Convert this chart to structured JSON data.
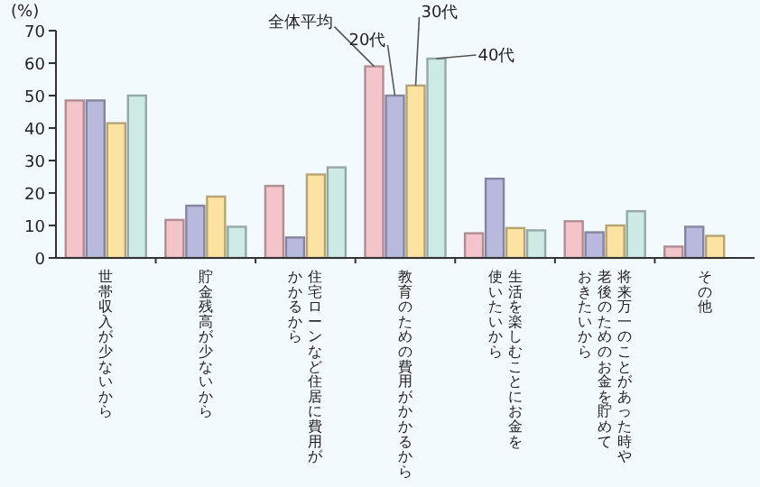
{
  "chart_data": {
    "type": "bar",
    "ylabel": "(%)",
    "ylim": [
      0,
      70
    ],
    "yticks": [
      0,
      10,
      20,
      30,
      40,
      50,
      60,
      70
    ],
    "grid": false,
    "categories": [
      "世帯収入が少ないから",
      "貯金残高が少ないから",
      "住宅ローンなど住居に費用が",
      "教育のための費用がかかるから",
      "生活を楽しむことにお金を",
      "将来万一のことがあった時や",
      "その他"
    ],
    "annotations": [
      "かかるから",
      "使いたいから",
      "老後のためのお金を貯めて",
      "おきたいから"
    ],
    "series": [
      {
        "name": "全体平均",
        "color": "#f4c4cb",
        "values": [
          48.5,
          11.7,
          22.2,
          59,
          7.6,
          11.3,
          3.5
        ]
      },
      {
        "name": "20代",
        "color": "#b9b9dd",
        "values": [
          48.5,
          16.1,
          6.3,
          50,
          24.4,
          7.9,
          9.6
        ]
      },
      {
        "name": "30代",
        "color": "#fde3a2",
        "values": [
          41.5,
          18.9,
          25.7,
          53.1,
          9.2,
          10,
          6.8
        ]
      },
      {
        "name": "40代",
        "color": "#cdeae5",
        "values": [
          50,
          9.6,
          27.9,
          61.4,
          8.5,
          14.4,
          null
        ]
      }
    ]
  }
}
